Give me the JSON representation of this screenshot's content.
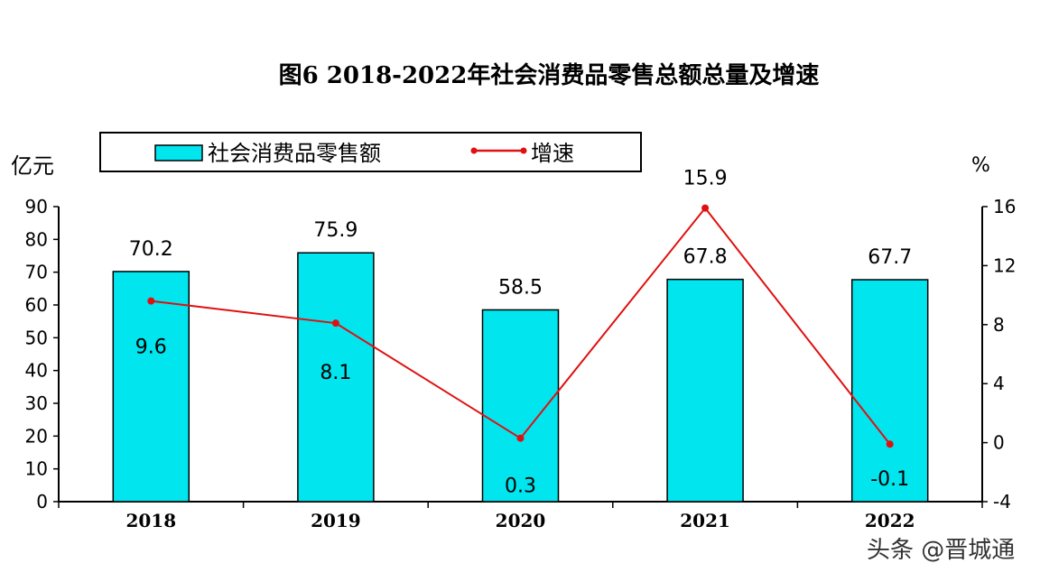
{
  "chart_data": {
    "type": "bar+line",
    "title": "图6 2018-2022年社会消费品零售总额总量及增速",
    "categories": [
      "2018",
      "2019",
      "2020",
      "2021",
      "2022"
    ],
    "series": [
      {
        "name": "社会消费品零售额",
        "type": "bar",
        "axis": "left",
        "color": "#00E5EE",
        "values": [
          70.2,
          75.9,
          58.5,
          67.8,
          67.7
        ]
      },
      {
        "name": "增速",
        "type": "line",
        "axis": "right",
        "color": "#E01010",
        "values": [
          9.6,
          8.1,
          0.3,
          15.9,
          -0.1
        ]
      }
    ],
    "ylabel": "亿元",
    "y2label": "%",
    "ylim": [
      0,
      90
    ],
    "yticks": [
      "0",
      "10",
      "20",
      "30",
      "40",
      "50",
      "60",
      "70",
      "80",
      "90"
    ],
    "y2lim": [
      -4,
      16
    ],
    "y2ticks": [
      "-4",
      "0",
      "4",
      "8",
      "12",
      "16"
    ],
    "grid": false,
    "legend": "top"
  },
  "watermark": "头条 @晋城通"
}
